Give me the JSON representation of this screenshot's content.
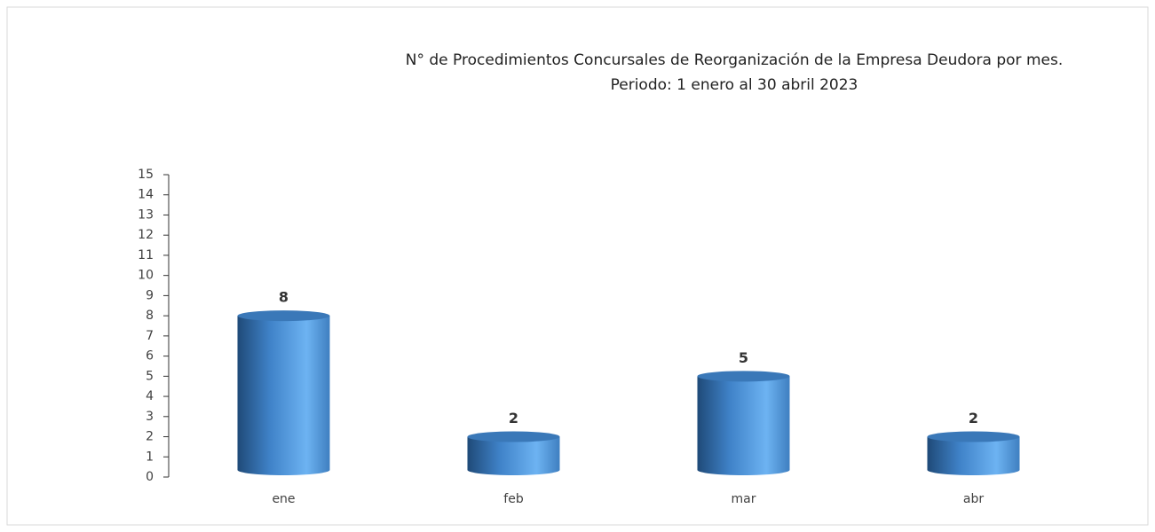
{
  "chart_data": {
    "type": "bar",
    "title": "N° de Procedimientos Concursales de Reorganización de la Empresa Deudora por mes.",
    "subtitle": "Periodo: 1 enero al 30 abril 2023",
    "categories": [
      "ene",
      "feb",
      "mar",
      "abr"
    ],
    "values": [
      8,
      2,
      5,
      2
    ],
    "color": "#4a8fd6",
    "ylim": [
      0,
      15
    ],
    "yticks": [
      0,
      1,
      2,
      3,
      4,
      5,
      6,
      7,
      8,
      9,
      10,
      11,
      12,
      13,
      14,
      15
    ],
    "grid": false
  }
}
